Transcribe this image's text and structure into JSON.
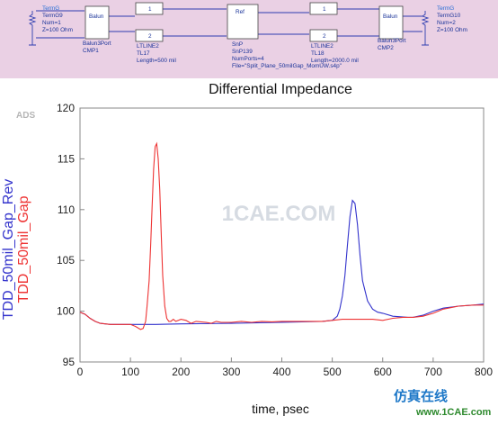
{
  "schematic": {
    "term_left": {
      "type": "TermG",
      "name": "TermG9",
      "num": "Num=1",
      "z": "Z=100 Ohm"
    },
    "balun_left": {
      "type": "Balun3Port",
      "name": "CMP1"
    },
    "line_left": {
      "type": "LTLINE2",
      "name": "TL17",
      "length": "Length=500 mil"
    },
    "snp": {
      "type": "SnP",
      "name": "SnP139",
      "ports": "NumPorts=4",
      "file": "File=\"Split_Plane_50milGap_MomUW.s4p\""
    },
    "line_right": {
      "type": "LTLINE2",
      "name": "TL18",
      "length": "Length=2000.0 mil"
    },
    "balun_right": {
      "type": "Balun3Port",
      "name": "CMP2"
    },
    "term_right": {
      "type": "TermG",
      "name": "TermG10",
      "num": "Num=2",
      "z": "Z=100 Ohm"
    },
    "balun_glyph": "Balun",
    "port1": "1",
    "port2": "2"
  },
  "chart_data": {
    "type": "line",
    "title": "Differential Impedance",
    "xlabel": "time, psec",
    "ylabel_series": [
      "TDD_50mil_Gap_Rev",
      "TDD_50mil_Gap"
    ],
    "xlim": [
      0,
      800
    ],
    "ylim": [
      95,
      120
    ],
    "xticks": [
      0,
      100,
      200,
      300,
      400,
      500,
      600,
      700,
      800
    ],
    "yticks": [
      95,
      100,
      105,
      110,
      115,
      120
    ],
    "grid": false,
    "series": [
      {
        "name": "TDD_50mil_Gap_Rev",
        "color": "#3333cc",
        "x": [
          0,
          10,
          20,
          30,
          40,
          50,
          60,
          80,
          100,
          150,
          200,
          300,
          400,
          480,
          500,
          510,
          515,
          520,
          525,
          530,
          535,
          540,
          545,
          550,
          555,
          560,
          570,
          580,
          590,
          600,
          620,
          650,
          660,
          680,
          700,
          720,
          750,
          780,
          800
        ],
        "y": [
          99.9,
          99.7,
          99.3,
          99.0,
          98.8,
          98.75,
          98.7,
          98.7,
          98.7,
          98.7,
          98.75,
          98.8,
          98.9,
          99.0,
          99.1,
          99.5,
          100.2,
          101.5,
          103.5,
          106.5,
          109.3,
          110.9,
          110.6,
          108.5,
          105.5,
          103.0,
          101.0,
          100.2,
          99.9,
          99.8,
          99.5,
          99.4,
          99.4,
          99.6,
          100.0,
          100.3,
          100.5,
          100.6,
          100.7
        ]
      },
      {
        "name": "TDD_50mil_Gap",
        "color": "#ee3333",
        "x": [
          0,
          10,
          20,
          30,
          40,
          50,
          60,
          80,
          100,
          110,
          120,
          125,
          130,
          133,
          137,
          140,
          143,
          146,
          149,
          152,
          155,
          158,
          161,
          164,
          168,
          172,
          176,
          180,
          185,
          190,
          200,
          210,
          220,
          230,
          250,
          260,
          270,
          280,
          300,
          320,
          340,
          360,
          380,
          400,
          420,
          440,
          460,
          480,
          500,
          520,
          540,
          560,
          580,
          600,
          620,
          640,
          660,
          680,
          700,
          720,
          750,
          780,
          800
        ],
        "y": [
          99.9,
          99.7,
          99.3,
          99.0,
          98.8,
          98.75,
          98.7,
          98.7,
          98.7,
          98.5,
          98.2,
          98.3,
          99.0,
          100.5,
          103.0,
          106.5,
          110.5,
          114.0,
          116.2,
          116.5,
          115.0,
          112.0,
          107.5,
          103.5,
          100.5,
          99.3,
          99.0,
          99.0,
          99.2,
          99.0,
          99.2,
          99.1,
          98.8,
          99.0,
          98.9,
          98.8,
          99.0,
          98.9,
          98.9,
          99.0,
          98.9,
          99.0,
          98.95,
          99.0,
          99.0,
          99.0,
          99.0,
          99.0,
          99.1,
          99.2,
          99.2,
          99.2,
          99.2,
          99.1,
          99.3,
          99.4,
          99.4,
          99.5,
          99.8,
          100.2,
          100.5,
          100.6,
          100.6
        ]
      }
    ]
  },
  "tool_label": "ADS",
  "watermark": "1CAE.COM",
  "logo": {
    "cn": "仿真在线",
    "url": "www.1CAE.com"
  }
}
